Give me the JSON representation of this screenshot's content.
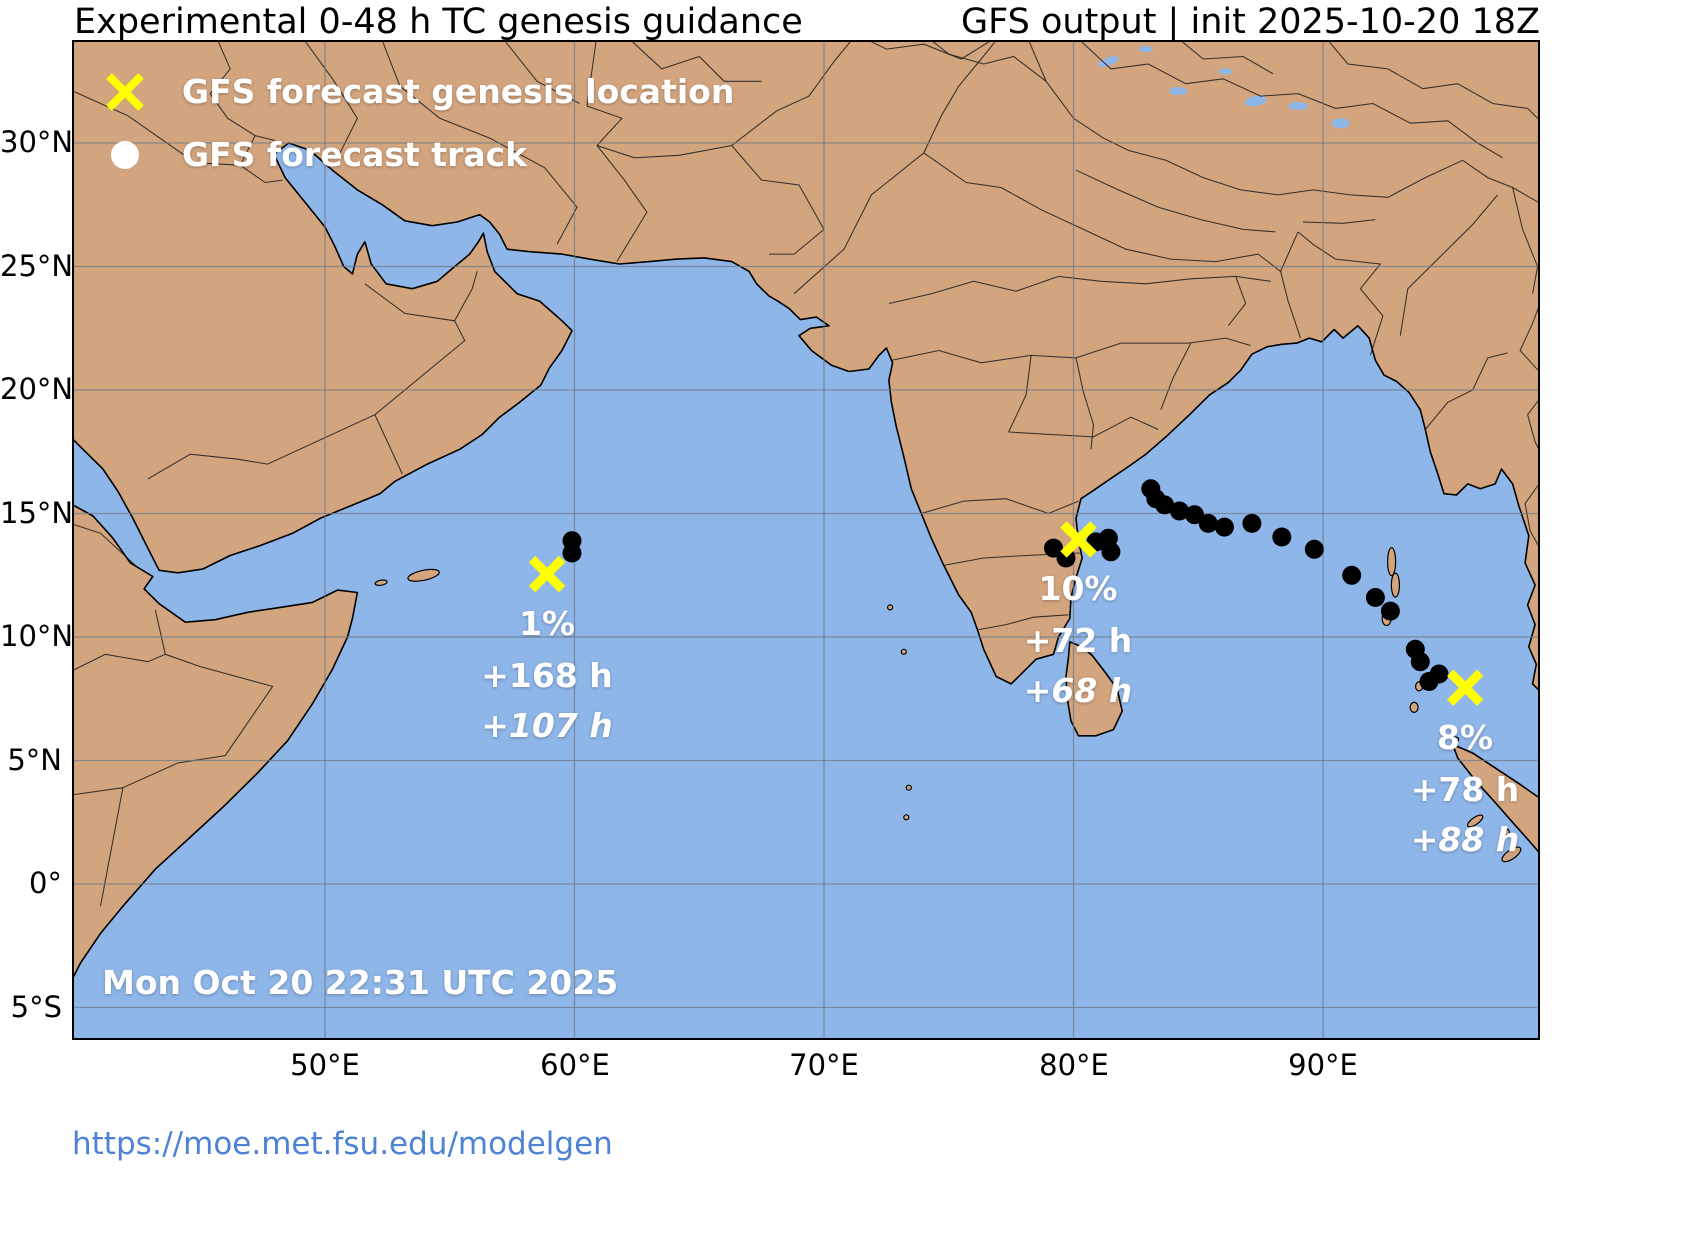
{
  "header": {
    "title_left": "Experimental 0-48 h TC genesis guidance",
    "title_right": "GFS output | init 2025-10-20 18Z"
  },
  "legend": {
    "genesis_label": "GFS forecast genesis location",
    "track_label": "GFS forecast track"
  },
  "map": {
    "timestamp": "Mon Oct 20 22:31 UTC 2025",
    "lat_ticks": [
      {
        "label": "30°N",
        "lat": 30
      },
      {
        "label": "25°N",
        "lat": 25
      },
      {
        "label": "20°N",
        "lat": 20
      },
      {
        "label": "15°N",
        "lat": 15
      },
      {
        "label": "10°N",
        "lat": 10
      },
      {
        "label": "5°N",
        "lat": 5
      },
      {
        "label": "0°",
        "lat": 0
      },
      {
        "label": "5°S",
        "lat": -5
      }
    ],
    "lon_ticks": [
      {
        "label": "50°E",
        "lon": 50
      },
      {
        "label": "60°E",
        "lon": 60
      },
      {
        "label": "70°E",
        "lon": 70
      },
      {
        "label": "80°E",
        "lon": 80
      },
      {
        "label": "90°E",
        "lon": 90
      }
    ]
  },
  "markers": [
    {
      "name": "arabian-sea-genesis",
      "lon": 58.9,
      "lat": 12.55,
      "pct": "1%",
      "hours1": "+168 h",
      "hours2": "+107 h"
    },
    {
      "name": "bay-of-bengal-genesis",
      "lon": 80.2,
      "lat": 13.95,
      "pct": "10%",
      "hours1": "+72 h",
      "hours2": "+68 h"
    },
    {
      "name": "andaman-sea-genesis",
      "lon": 95.7,
      "lat": 7.95,
      "pct": "8%",
      "hours1": "+78 h",
      "hours2": "+88 h"
    }
  ],
  "tracks": [
    {
      "name": "arabian-sea-track",
      "points": [
        [
          59.9,
          13.9
        ],
        [
          59.9,
          13.4
        ]
      ]
    },
    {
      "name": "bay-of-bengal-track",
      "points": [
        [
          79.2,
          13.6
        ],
        [
          79.7,
          13.2
        ],
        [
          80.9,
          13.85
        ],
        [
          81.4,
          14.0
        ],
        [
          81.5,
          13.45
        ],
        [
          83.1,
          16.0
        ],
        [
          83.3,
          15.6
        ],
        [
          83.65,
          15.35
        ],
        [
          84.25,
          15.1
        ],
        [
          84.85,
          14.95
        ],
        [
          85.4,
          14.6
        ],
        [
          86.05,
          14.45
        ],
        [
          87.15,
          14.6
        ],
        [
          88.35,
          14.05
        ],
        [
          89.65,
          13.55
        ],
        [
          91.15,
          12.5
        ],
        [
          92.1,
          11.6
        ],
        [
          92.7,
          11.05
        ],
        [
          93.7,
          9.5
        ],
        [
          93.9,
          9.0
        ],
        [
          94.65,
          8.5
        ],
        [
          94.25,
          8.2
        ]
      ]
    }
  ],
  "colors": {
    "ocean": "#8fb6e9",
    "land": "#d3a57f",
    "coast": "#000000",
    "border": "#1a1a1a",
    "grid": "#707b88",
    "genesis_x": "#ffff00",
    "track_dot": "#000000",
    "legend_dot": "#ffffff",
    "label_text": "#ffffff",
    "title_text": "#000000",
    "url": "#4d82d6"
  },
  "footer": {
    "url": "https://moe.met.fsu.edu/modelgen"
  }
}
